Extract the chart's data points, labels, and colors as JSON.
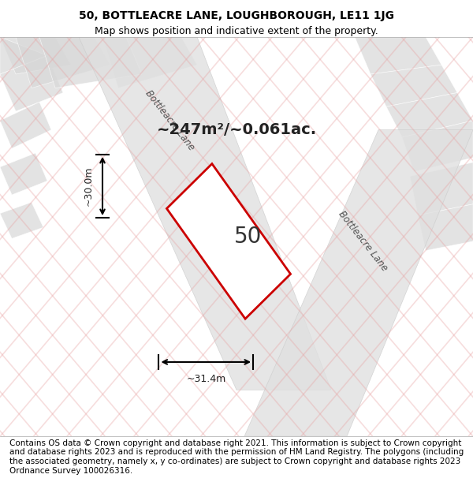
{
  "title_line1": "50, BOTTLEACRE LANE, LOUGHBOROUGH, LE11 1JG",
  "title_line2": "Map shows position and indicative extent of the property.",
  "footer_text": "Contains OS data © Crown copyright and database right 2021. This information is subject to Crown copyright and database rights 2023 and is reproduced with the permission of HM Land Registry. The polygons (including the associated geometry, namely x, y co-ordinates) are subject to Crown copyright and database rights 2023 Ordnance Survey 100026316.",
  "area_text": "~247m²/~0.061ac.",
  "label_50": "50",
  "dim_height": "~30.0m",
  "dim_width": "~31.4m",
  "map_bg": "#f5f5f5",
  "road_color": "#e8e8e8",
  "hatch_color": "#e8b0b0",
  "plot_line_color": "#cc0000",
  "plot_fill_color": "#ffffff",
  "road_label1": "Bottleacre Lane",
  "road_label2": "Bottleacre Lane",
  "title_fontsize": 10,
  "subtitle_fontsize": 9,
  "footer_fontsize": 7.5
}
